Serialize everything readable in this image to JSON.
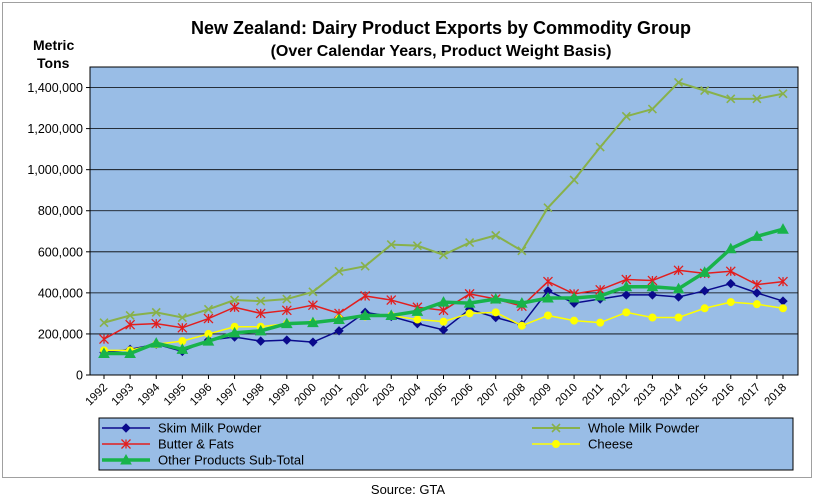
{
  "chart_data": {
    "type": "line",
    "title": "New Zealand:  Dairy Product  Exports by Commodity  Group",
    "subtitle": "(Over Calendar Years, Product Weight Basis)",
    "ylabel_line1": "Metric",
    "ylabel_line2": "Tons",
    "ylim": [
      0,
      1500000
    ],
    "yticks": [
      0,
      200000,
      400000,
      600000,
      800000,
      1000000,
      1200000,
      1400000
    ],
    "ytick_labels": [
      "0",
      "200,000",
      "400,000",
      "600,000",
      "800,000",
      "1,000,000",
      "1,200,000",
      "1,400,000"
    ],
    "x": [
      "1992",
      "1993",
      "1994",
      "1995",
      "1996",
      "1997",
      "1998",
      "1999",
      "2000",
      "2001",
      "2002",
      "2003",
      "2004",
      "2005",
      "2006",
      "2007",
      "2008",
      "2009",
      "2010",
      "2011",
      "2012",
      "2013",
      "2014",
      "2015",
      "2016",
      "2017",
      "2018"
    ],
    "grid": true,
    "plot_background": "#99bde6",
    "series": [
      {
        "name": "Skim Milk Powder",
        "color": "#0a0a8c",
        "marker": "diamond",
        "values": [
          110000,
          125000,
          150000,
          115000,
          170000,
          185000,
          165000,
          170000,
          160000,
          215000,
          305000,
          285000,
          250000,
          220000,
          320000,
          280000,
          245000,
          410000,
          350000,
          370000,
          390000,
          390000,
          380000,
          410000,
          445000,
          400000,
          360000
        ]
      },
      {
        "name": "Whole Milk Powder",
        "color": "#88b14a",
        "marker": "x",
        "values": [
          255000,
          290000,
          305000,
          280000,
          320000,
          365000,
          360000,
          370000,
          405000,
          505000,
          530000,
          635000,
          630000,
          585000,
          645000,
          680000,
          605000,
          815000,
          950000,
          1110000,
          1260000,
          1295000,
          1425000,
          1385000,
          1345000,
          1345000,
          1370000
        ]
      },
      {
        "name": "Butter & Fats",
        "color": "#e21e1e",
        "marker": "asterisk",
        "values": [
          175000,
          245000,
          250000,
          230000,
          275000,
          330000,
          300000,
          315000,
          340000,
          300000,
          385000,
          365000,
          330000,
          315000,
          395000,
          370000,
          335000,
          455000,
          395000,
          415000,
          465000,
          460000,
          510000,
          495000,
          505000,
          440000,
          455000
        ]
      },
      {
        "name": "Cheese",
        "color": "#ffff00",
        "marker": "circle",
        "values": [
          120000,
          120000,
          150000,
          165000,
          200000,
          235000,
          235000,
          250000,
          255000,
          275000,
          285000,
          290000,
          270000,
          260000,
          300000,
          305000,
          240000,
          290000,
          265000,
          255000,
          305000,
          280000,
          280000,
          325000,
          355000,
          345000,
          325000
        ]
      },
      {
        "name": "Other Products Sub-Total",
        "color": "#18b34a",
        "marker": "triangle",
        "values": [
          105000,
          105000,
          155000,
          125000,
          165000,
          205000,
          215000,
          250000,
          255000,
          270000,
          290000,
          290000,
          310000,
          355000,
          350000,
          370000,
          350000,
          375000,
          375000,
          385000,
          430000,
          430000,
          420000,
          500000,
          615000,
          675000,
          710000
        ]
      }
    ],
    "legend_position": "bottom",
    "source": "Source: GTA"
  }
}
